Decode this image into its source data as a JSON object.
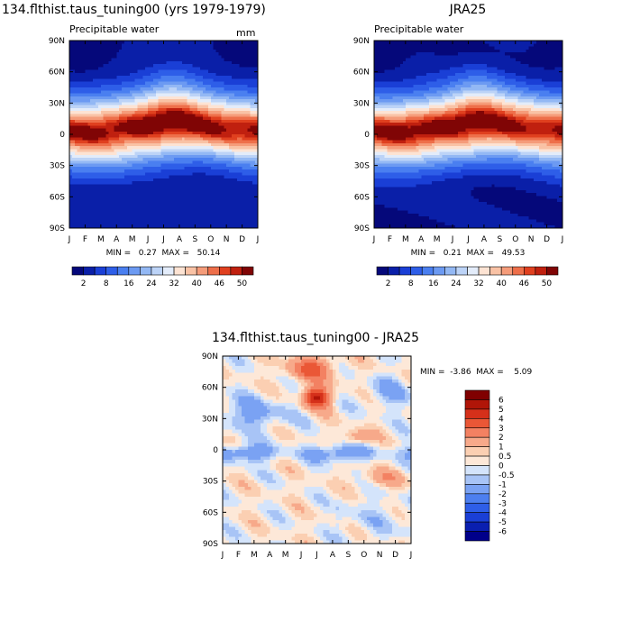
{
  "chart_data": [
    {
      "type": "heatmap",
      "title": "134.flthist.taus_tuning00 (yrs 1979-1979)",
      "subtitle": "Precipitable water",
      "units": "mm",
      "x_labels": [
        "J",
        "F",
        "M",
        "A",
        "M",
        "J",
        "J",
        "A",
        "S",
        "O",
        "N",
        "D",
        "J"
      ],
      "y_labels": [
        "90N",
        "60N",
        "30N",
        "0",
        "30S",
        "60S",
        "90S"
      ],
      "ylim": [
        -90,
        90
      ],
      "stats": "MIN =   0.27  MAX =   50.14",
      "min": 0.27,
      "max": 50.14,
      "colorbar_labels": [
        "2",
        "8",
        "16",
        "24",
        "32",
        "40",
        "46",
        "50"
      ],
      "colorbar_levels": [
        2,
        5,
        8,
        12,
        16,
        20,
        24,
        28,
        32,
        36,
        40,
        43,
        46,
        48,
        50
      ],
      "colors": [
        "#05087a",
        "#0a1fa8",
        "#1a3fd6",
        "#2e5ee8",
        "#4a7ff0",
        "#6c9af2",
        "#93b8f4",
        "#bcd3f7",
        "#e3ecfa",
        "#fde3d3",
        "#f9c2a5",
        "#f59c7a",
        "#ee6f4a",
        "#e0401f",
        "#c0200f",
        "#800505"
      ]
    },
    {
      "type": "heatmap",
      "title": "JRA25",
      "subtitle": "Precipitable water",
      "x_labels": [
        "J",
        "F",
        "M",
        "A",
        "M",
        "J",
        "J",
        "A",
        "S",
        "O",
        "N",
        "D",
        "J"
      ],
      "y_labels": [
        "90N",
        "60N",
        "30N",
        "0",
        "30S",
        "60S",
        "90S"
      ],
      "ylim": [
        -90,
        90
      ],
      "stats": "MIN =   0.21  MAX =   49.53",
      "min": 0.21,
      "max": 49.53,
      "colorbar_labels": [
        "2",
        "8",
        "16",
        "24",
        "32",
        "40",
        "46",
        "50"
      ]
    },
    {
      "type": "heatmap",
      "title": "134.flthist.taus_tuning00 - JRA25",
      "x_labels": [
        "J",
        "F",
        "M",
        "A",
        "M",
        "J",
        "J",
        "A",
        "S",
        "O",
        "N",
        "D",
        "J"
      ],
      "y_labels": [
        "90N",
        "60N",
        "30N",
        "0",
        "30S",
        "60S",
        "90S"
      ],
      "ylim": [
        -90,
        90
      ],
      "stats": "MIN =  -3.86  MAX =    5.09",
      "min": -3.86,
      "max": 5.09,
      "colorbar_labels": [
        "6",
        "5",
        "4",
        "3",
        "2",
        "1",
        "0.5",
        "0",
        "-0.5",
        "-1",
        "-2",
        "-3",
        "-4",
        "-5",
        "-6"
      ],
      "colorbar_levels": [
        -6,
        -5,
        -4,
        -3,
        -2,
        -1,
        -0.5,
        0,
        0.5,
        1,
        2,
        3,
        4,
        5,
        6
      ],
      "colors": [
        "#00008a",
        "#0a1fb0",
        "#1a3fd6",
        "#2e5ee8",
        "#4d7fef",
        "#7aa2f3",
        "#a8c4f6",
        "#d4e4fb",
        "#fde8d8",
        "#fbcfb2",
        "#f7a98a",
        "#f38162",
        "#ea5736",
        "#d5301a",
        "#b01508",
        "#800000"
      ]
    }
  ]
}
